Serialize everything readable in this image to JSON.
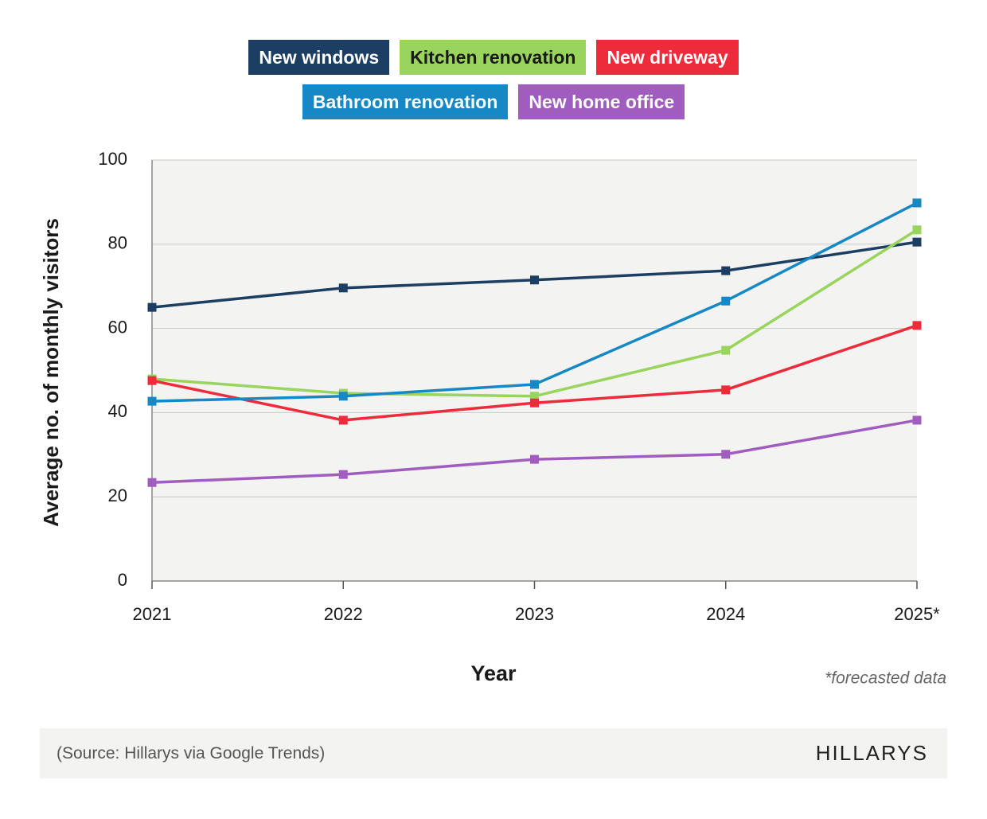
{
  "chart_data": {
    "type": "line",
    "categories": [
      "2021",
      "2022",
      "2023",
      "2024",
      "2025*"
    ],
    "series": [
      {
        "name": "New windows",
        "color": "#1d3e63",
        "values": [
          65.0,
          69.6,
          71.5,
          73.7,
          80.5
        ]
      },
      {
        "name": "Kitchen renovation",
        "color": "#99d45c",
        "values": [
          48.0,
          44.6,
          43.9,
          54.8,
          83.4
        ]
      },
      {
        "name": "New driveway",
        "color": "#ee2b3b",
        "values": [
          47.6,
          38.2,
          42.3,
          45.4,
          60.7
        ]
      },
      {
        "name": "Bathroom renovation",
        "color": "#1688c5",
        "values": [
          42.7,
          43.9,
          46.7,
          66.5,
          89.8
        ]
      },
      {
        "name": "New home office",
        "color": "#a05cbf",
        "values": [
          23.4,
          25.3,
          28.9,
          30.1,
          38.2
        ]
      }
    ],
    "ylim": [
      0,
      100
    ],
    "yticks": [
      0,
      20,
      40,
      60,
      80,
      100
    ],
    "grid": true,
    "y_label": "Average no. of monthly visitors",
    "x_label": "Year",
    "note": "*forecasted data",
    "source": "(Source: Hillarys via Google Trends)",
    "brand": "HILLARYS"
  }
}
